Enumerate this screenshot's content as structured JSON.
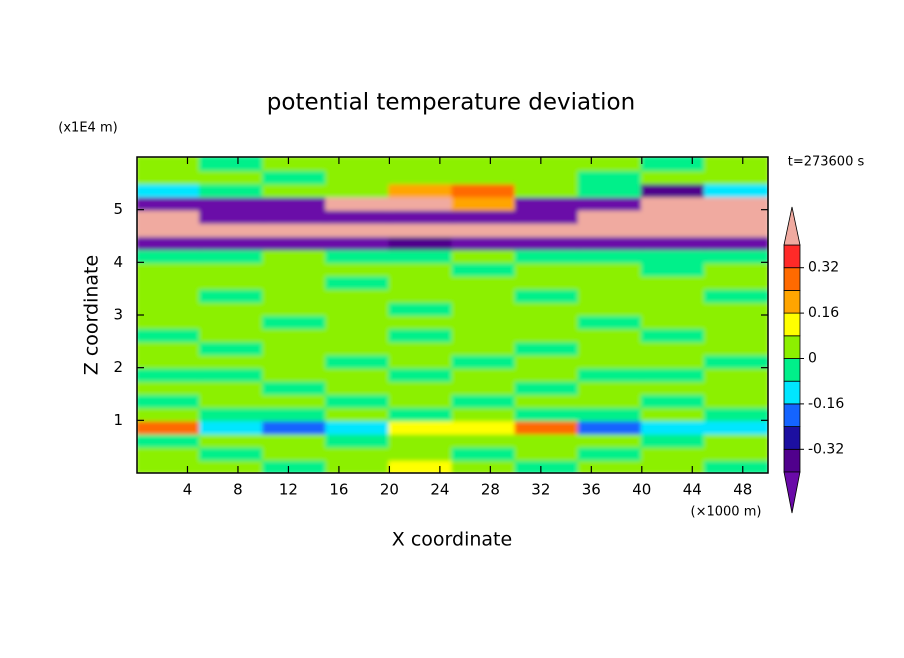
{
  "chart_data": {
    "type": "contour",
    "title": "potential temperature deviation",
    "x_label": "X coordinate",
    "y_label": "Z coordinate",
    "x_unit": "(×1000 m)",
    "y_unit": "(x1E4 m)",
    "annotation": "t=273600 s",
    "xlim": [
      0,
      50
    ],
    "ylim": [
      0,
      6
    ],
    "xticks": [
      4,
      8,
      12,
      16,
      20,
      24,
      28,
      32,
      36,
      40,
      44,
      48
    ],
    "yticks": [
      1,
      2,
      3,
      4,
      5
    ],
    "field": {
      "x": [
        2.5,
        7.5,
        12.5,
        17.5,
        22.5,
        27.5,
        32.5,
        37.5,
        42.5,
        47.5
      ],
      "y": [
        0.125,
        0.375,
        0.625,
        0.875,
        1.125,
        1.375,
        1.625,
        1.875,
        2.125,
        2.375,
        2.625,
        2.875,
        3.125,
        3.375,
        3.625,
        3.875,
        4.125,
        4.375,
        4.625,
        4.875,
        5.125,
        5.375,
        5.625,
        5.875
      ],
      "values": [
        [
          0.04,
          0.04,
          -0.04,
          0.04,
          0.12,
          0.04,
          -0.04,
          0.04,
          0.04,
          -0.04
        ],
        [
          0.04,
          -0.04,
          0.04,
          0.04,
          0.04,
          -0.04,
          0.04,
          -0.04,
          0.04,
          0.04
        ],
        [
          -0.04,
          0.04,
          0.04,
          -0.04,
          0.04,
          0.04,
          0.04,
          0.04,
          -0.04,
          0.04
        ],
        [
          0.28,
          -0.12,
          -0.2,
          -0.12,
          0.12,
          0.12,
          0.28,
          -0.2,
          -0.12,
          -0.12
        ],
        [
          0.04,
          -0.04,
          -0.04,
          0.04,
          -0.04,
          0.04,
          -0.04,
          -0.04,
          0.04,
          -0.04
        ],
        [
          -0.04,
          0.04,
          0.04,
          -0.04,
          0.04,
          -0.04,
          0.04,
          0.04,
          -0.04,
          0.04
        ],
        [
          0.04,
          0.04,
          -0.04,
          0.04,
          0.04,
          0.04,
          -0.04,
          0.04,
          0.04,
          0.04
        ],
        [
          -0.04,
          -0.04,
          0.04,
          0.04,
          -0.04,
          0.04,
          0.04,
          -0.04,
          -0.04,
          0.04
        ],
        [
          0.04,
          0.04,
          0.04,
          -0.04,
          0.04,
          -0.04,
          0.04,
          0.04,
          0.04,
          -0.04
        ],
        [
          0.04,
          -0.04,
          0.04,
          0.04,
          0.04,
          0.04,
          -0.04,
          0.04,
          0.04,
          0.04
        ],
        [
          -0.04,
          0.04,
          0.04,
          0.04,
          -0.04,
          0.04,
          0.04,
          0.04,
          -0.04,
          0.04
        ],
        [
          0.04,
          0.04,
          -0.04,
          0.04,
          0.04,
          0.04,
          0.04,
          -0.04,
          0.04,
          0.04
        ],
        [
          0.04,
          0.04,
          0.04,
          0.04,
          -0.04,
          0.04,
          0.04,
          0.04,
          0.04,
          0.04
        ],
        [
          0.04,
          -0.04,
          0.04,
          0.04,
          0.04,
          0.04,
          -0.04,
          0.04,
          0.04,
          -0.04
        ],
        [
          0.04,
          0.04,
          0.04,
          -0.04,
          0.04,
          0.04,
          0.04,
          0.04,
          0.04,
          0.04
        ],
        [
          0.04,
          0.04,
          0.04,
          0.04,
          0.04,
          -0.04,
          0.04,
          0.04,
          -0.04,
          0.04
        ],
        [
          -0.04,
          -0.04,
          0.04,
          -0.04,
          -0.04,
          0.04,
          -0.04,
          -0.04,
          -0.04,
          -0.04
        ],
        [
          -0.45,
          -0.45,
          -0.45,
          -0.45,
          -0.36,
          -0.45,
          -0.45,
          -0.45,
          -0.45,
          -0.45
        ],
        [
          0.45,
          0.45,
          0.45,
          0.45,
          0.45,
          0.45,
          0.45,
          0.45,
          0.45,
          0.45
        ],
        [
          0.45,
          -0.45,
          -0.45,
          -0.45,
          -0.45,
          -0.45,
          -0.45,
          0.45,
          0.45,
          0.45
        ],
        [
          -0.45,
          -0.45,
          -0.45,
          0.45,
          0.45,
          0.2,
          -0.45,
          -0.45,
          0.45,
          0.45
        ],
        [
          -0.12,
          -0.04,
          0.04,
          0.04,
          0.2,
          0.28,
          0.04,
          -0.04,
          -0.36,
          -0.12
        ],
        [
          0.04,
          0.04,
          -0.04,
          0.04,
          0.04,
          0.04,
          0.04,
          -0.04,
          0.04,
          0.04
        ],
        [
          0.04,
          -0.04,
          0.04,
          0.04,
          0.04,
          0.04,
          0.04,
          0.04,
          -0.04,
          0.04
        ]
      ]
    },
    "colorbar": {
      "levels": [
        -0.4,
        -0.32,
        -0.24,
        -0.16,
        -0.08,
        0,
        0.08,
        0.16,
        0.24,
        0.32,
        0.4
      ],
      "colors": [
        "#50008c",
        "#1c0fa0",
        "#1464ff",
        "#00e6ff",
        "#00f08a",
        "#8cf000",
        "#ffff00",
        "#ffa500",
        "#ff6a00",
        "#ff2a28"
      ],
      "under_color": "#6a0aa8",
      "over_color": "#f0aaa0",
      "ticks": [
        0.32,
        0.16,
        0,
        -0.16,
        -0.32
      ]
    }
  }
}
